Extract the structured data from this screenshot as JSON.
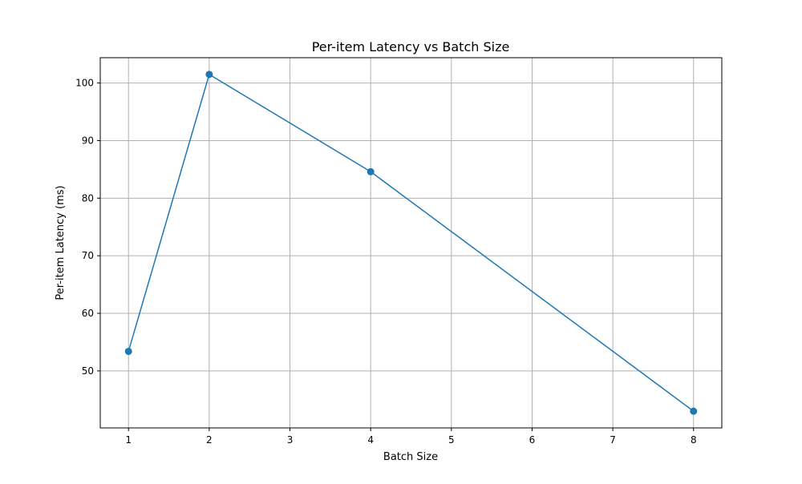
{
  "chart_data": {
    "type": "line",
    "title": "Per-item Latency vs Batch Size",
    "xlabel": "Batch Size",
    "ylabel": "Per-item Latency (ms)",
    "x_ticks": [
      1,
      2,
      3,
      4,
      5,
      6,
      7,
      8
    ],
    "y_ticks": [
      50,
      60,
      70,
      80,
      90,
      100
    ],
    "xlim": [
      0.65,
      8.35
    ],
    "ylim": [
      40.1,
      104.4
    ],
    "grid": true,
    "series": [
      {
        "color": "#1f77b4",
        "marker": "circle",
        "x": [
          1,
          2,
          4,
          8
        ],
        "y": [
          53.4,
          101.5,
          84.6,
          43.0
        ]
      }
    ]
  }
}
